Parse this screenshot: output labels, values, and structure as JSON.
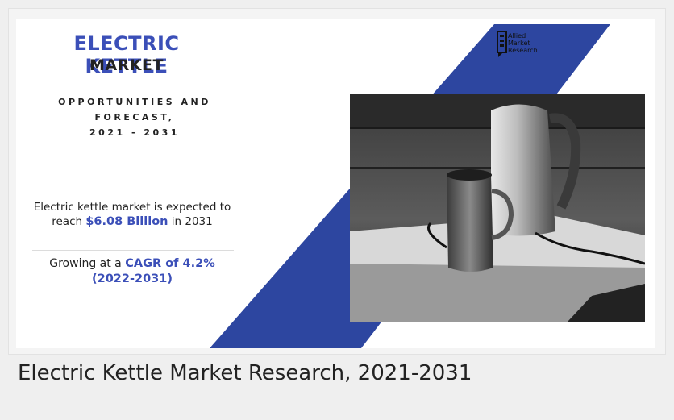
{
  "infographic": {
    "title_line1": "ELECTRIC KETTLE",
    "title_line2": "MARKET",
    "subtitle_line1": "OPPORTUNITIES AND",
    "subtitle_line2": "FORECAST,",
    "subtitle_line3": "2021 - 2031",
    "stat1_prefix": "Electric kettle market is expected to reach",
    "stat1_value": "$6.08 Billion",
    "stat1_suffix": "in 2031",
    "stat2_prefix": "Growing at a",
    "stat2_value": "CAGR of 4.2%",
    "stat2_period": "(2022-2031)",
    "logo_line1": "Allied",
    "logo_line2": "Market",
    "logo_line3": "Research",
    "accent_color": "#2d46a0"
  },
  "caption": "Electric Kettle Market Research, 2021-2031"
}
